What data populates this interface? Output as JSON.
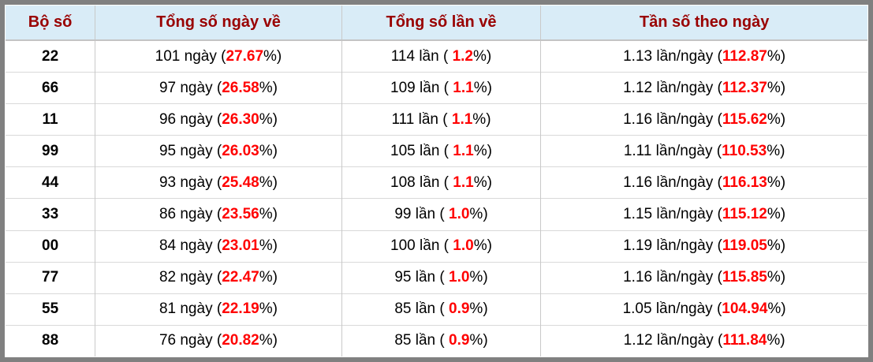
{
  "colors": {
    "outer_border": "#808080",
    "header_background": "#d9ecf7",
    "header_text": "#990000",
    "highlight_red": "#ff0000",
    "grid_line": "#c9c9c9",
    "body_text": "#000000"
  },
  "table": {
    "headers": [
      "Bộ số",
      "Tổng số ngày về",
      "Tổng số lần về",
      "Tần số theo ngày"
    ],
    "rows": [
      {
        "pair": "22",
        "days": {
          "prefix": "101 ngày (",
          "pct": "27.67",
          "suffix": "%)"
        },
        "times": {
          "prefix": "114 lần ( ",
          "pct": "1.2",
          "suffix": "%)"
        },
        "freq": {
          "prefix": "1.13 lần/ngày (",
          "pct": "112.87",
          "suffix": "%)"
        }
      },
      {
        "pair": "66",
        "days": {
          "prefix": "97 ngày (",
          "pct": "26.58",
          "suffix": "%)"
        },
        "times": {
          "prefix": "109 lần ( ",
          "pct": "1.1",
          "suffix": "%)"
        },
        "freq": {
          "prefix": "1.12 lần/ngày (",
          "pct": "112.37",
          "suffix": "%)"
        }
      },
      {
        "pair": "11",
        "days": {
          "prefix": "96 ngày (",
          "pct": "26.30",
          "suffix": "%)"
        },
        "times": {
          "prefix": "111 lần ( ",
          "pct": "1.1",
          "suffix": "%)"
        },
        "freq": {
          "prefix": "1.16 lần/ngày (",
          "pct": "115.62",
          "suffix": "%)"
        }
      },
      {
        "pair": "99",
        "days": {
          "prefix": "95 ngày (",
          "pct": "26.03",
          "suffix": "%)"
        },
        "times": {
          "prefix": "105 lần ( ",
          "pct": "1.1",
          "suffix": "%)"
        },
        "freq": {
          "prefix": "1.11 lần/ngày (",
          "pct": "110.53",
          "suffix": "%)"
        }
      },
      {
        "pair": "44",
        "days": {
          "prefix": "93 ngày (",
          "pct": "25.48",
          "suffix": "%)"
        },
        "times": {
          "prefix": "108 lần ( ",
          "pct": "1.1",
          "suffix": "%)"
        },
        "freq": {
          "prefix": "1.16 lần/ngày (",
          "pct": "116.13",
          "suffix": "%)"
        }
      },
      {
        "pair": "33",
        "days": {
          "prefix": "86 ngày (",
          "pct": "23.56",
          "suffix": "%)"
        },
        "times": {
          "prefix": "99 lần ( ",
          "pct": "1.0",
          "suffix": "%)"
        },
        "freq": {
          "prefix": "1.15 lần/ngày (",
          "pct": "115.12",
          "suffix": "%)"
        }
      },
      {
        "pair": "00",
        "days": {
          "prefix": "84 ngày (",
          "pct": "23.01",
          "suffix": "%)"
        },
        "times": {
          "prefix": "100 lần ( ",
          "pct": "1.0",
          "suffix": "%)"
        },
        "freq": {
          "prefix": "1.19 lần/ngày (",
          "pct": "119.05",
          "suffix": "%)"
        }
      },
      {
        "pair": "77",
        "days": {
          "prefix": "82 ngày (",
          "pct": "22.47",
          "suffix": "%)"
        },
        "times": {
          "prefix": "95 lần ( ",
          "pct": "1.0",
          "suffix": "%)"
        },
        "freq": {
          "prefix": "1.16 lần/ngày (",
          "pct": "115.85",
          "suffix": "%)"
        }
      },
      {
        "pair": "55",
        "days": {
          "prefix": "81 ngày (",
          "pct": "22.19",
          "suffix": "%)"
        },
        "times": {
          "prefix": "85 lần ( ",
          "pct": "0.9",
          "suffix": "%)"
        },
        "freq": {
          "prefix": "1.05 lần/ngày (",
          "pct": "104.94",
          "suffix": "%)"
        }
      },
      {
        "pair": "88",
        "days": {
          "prefix": "76 ngày (",
          "pct": "20.82",
          "suffix": "%)"
        },
        "times": {
          "prefix": "85 lần ( ",
          "pct": "0.9",
          "suffix": "%)"
        },
        "freq": {
          "prefix": "1.12 lần/ngày (",
          "pct": "111.84",
          "suffix": "%)"
        }
      }
    ]
  }
}
